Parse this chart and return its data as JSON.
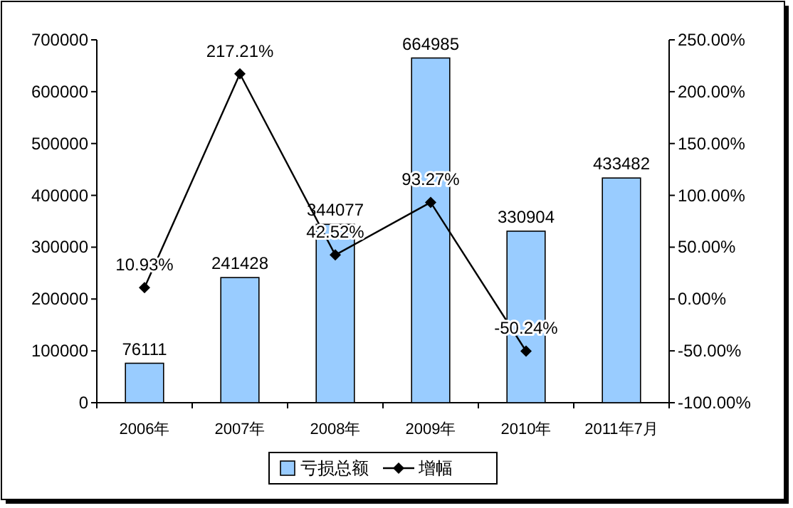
{
  "chart_data": {
    "type": "bar",
    "categories": [
      "2006年",
      "2007年",
      "2008年",
      "2009年",
      "2010年",
      "2011年7月"
    ],
    "series": [
      {
        "name": "亏损总额",
        "color": "#99ccff",
        "values": [
          76111,
          241428,
          344077,
          664985,
          330904,
          433482
        ],
        "value_labels": [
          "76111",
          "241428",
          "344077",
          "664985",
          "330904",
          "433482"
        ]
      },
      {
        "name": "增幅",
        "type": "line",
        "axis": "y2",
        "color": "#000000",
        "marker": "diamond",
        "line_style": "solid",
        "values": [
          10.93,
          217.21,
          42.52,
          93.27,
          -50.24,
          null
        ],
        "value_labels": [
          "10.93%",
          "217.21%",
          "42.52%",
          "93.27%",
          "-50.24%",
          null
        ]
      }
    ],
    "ylim": [
      0,
      700000
    ],
    "yticks": [
      0,
      100000,
      200000,
      300000,
      400000,
      500000,
      600000,
      700000
    ],
    "y2lim": [
      -100,
      250
    ],
    "y2ticks": [
      {
        "value": -100,
        "label": "-100.00%"
      },
      {
        "value": -50,
        "label": "-50.00%"
      },
      {
        "value": 0,
        "label": "0.00%"
      },
      {
        "value": 50,
        "label": "50.00%"
      },
      {
        "value": 100,
        "label": "100.00%"
      },
      {
        "value": 150,
        "label": "150.00%"
      },
      {
        "value": 200,
        "label": "200.00%"
      },
      {
        "value": 250,
        "label": "250.00%"
      }
    ],
    "grid": false,
    "legend": "bottom"
  }
}
